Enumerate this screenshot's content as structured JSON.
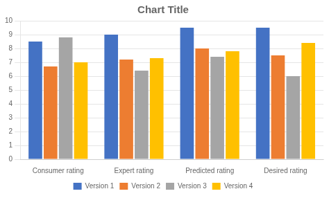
{
  "chart_data": {
    "type": "bar",
    "title": "Chart Title",
    "categories": [
      "Consumer rating",
      "Expert rating",
      "Predicted rating",
      "Desired rating"
    ],
    "series": [
      {
        "name": "Version 1",
        "color": "#4472C4",
        "values": [
          8.5,
          9.0,
          9.5,
          9.5
        ]
      },
      {
        "name": "Version 2",
        "color": "#ED7D31",
        "values": [
          6.7,
          7.2,
          8.0,
          7.5
        ]
      },
      {
        "name": "Version 3",
        "color": "#A5A5A5",
        "values": [
          8.8,
          6.4,
          7.4,
          6.0
        ]
      },
      {
        "name": "Version 4",
        "color": "#FFC000",
        "values": [
          7.0,
          7.3,
          7.8,
          8.4
        ]
      }
    ],
    "ylim": [
      0,
      10
    ],
    "yticks": [
      0,
      1,
      2,
      3,
      4,
      5,
      6,
      7,
      8,
      9,
      10
    ],
    "grid": true,
    "legend": "bottom"
  }
}
